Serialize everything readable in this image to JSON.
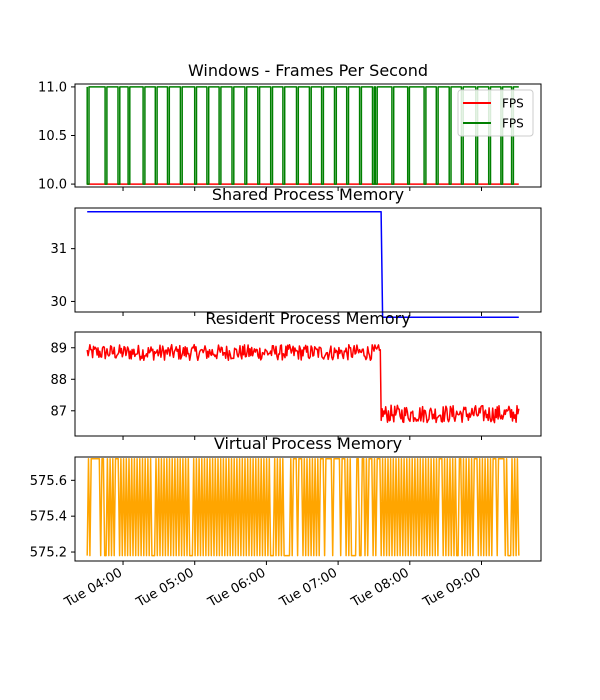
{
  "chart_data": [
    {
      "type": "line",
      "title": "Windows - Frames Per Second",
      "ylim": [
        9.97,
        11.03
      ],
      "yticks": [
        "10.0",
        "10.5",
        "11.0"
      ],
      "ytick_values": [
        10.0,
        10.5,
        11.0
      ],
      "legend": {
        "placement": "top-right",
        "entries": [
          "FPS",
          "FPS"
        ]
      },
      "series": [
        {
          "name": "FPS",
          "color": "#ff0000",
          "kind": "flat",
          "value": 10.0
        },
        {
          "name": "FPS",
          "color": "#008000",
          "kind": "square",
          "high": 11.0,
          "low": 10.0,
          "dips_hours": [
            3.5,
            3.75,
            3.93,
            4.07,
            4.28,
            4.45,
            4.62,
            4.8,
            5.0,
            5.17,
            5.34,
            5.52,
            5.7,
            5.88,
            6.06,
            6.23,
            6.42,
            6.6,
            6.77,
            6.95,
            7.12,
            7.3,
            7.48,
            7.52,
            7.75,
            7.97,
            8.2,
            8.37,
            8.55,
            8.72,
            8.92,
            9.1,
            9.27,
            9.42
          ]
        }
      ]
    },
    {
      "type": "line",
      "title": "Shared Process Memory",
      "ylim": [
        29.8,
        31.77
      ],
      "yticks": [
        "30",
        "31"
      ],
      "ytick_values": [
        30,
        31
      ],
      "series": [
        {
          "color": "#0000ff",
          "kind": "step",
          "before": 31.7,
          "after": 29.7,
          "step_hour": 7.6
        }
      ]
    },
    {
      "type": "line",
      "title": "Resident Process Memory",
      "ylim": [
        86.2,
        89.5
      ],
      "yticks": [
        "87",
        "88",
        "89"
      ],
      "ytick_values": [
        87,
        88,
        89
      ],
      "series": [
        {
          "color": "#ff0000",
          "kind": "noise",
          "before": 88.85,
          "after": 86.9,
          "amp_before": 0.25,
          "amp_after": 0.28,
          "step_hour": 7.6,
          "samples": 480
        }
      ]
    },
    {
      "type": "line",
      "title": "Virtual Process Memory",
      "ylim": [
        575.15,
        575.73
      ],
      "yticks": [
        "575.2",
        "575.4",
        "575.6"
      ],
      "ytick_values": [
        575.2,
        575.4,
        575.6
      ],
      "series": [
        {
          "color": "#ffa500",
          "kind": "oscillate",
          "high": 575.72,
          "low": 575.18,
          "samples": 320
        }
      ]
    }
  ],
  "x_axis": {
    "range_hours": [
      3.33,
      9.83
    ],
    "data_range_hours": [
      3.5,
      9.52
    ],
    "tick_hours": [
      4,
      5,
      6,
      7,
      8,
      9
    ],
    "tick_labels": [
      "Tue 04:00",
      "Tue 05:00",
      "Tue 06:00",
      "Tue 07:00",
      "Tue 08:00",
      "Tue 09:00"
    ]
  }
}
